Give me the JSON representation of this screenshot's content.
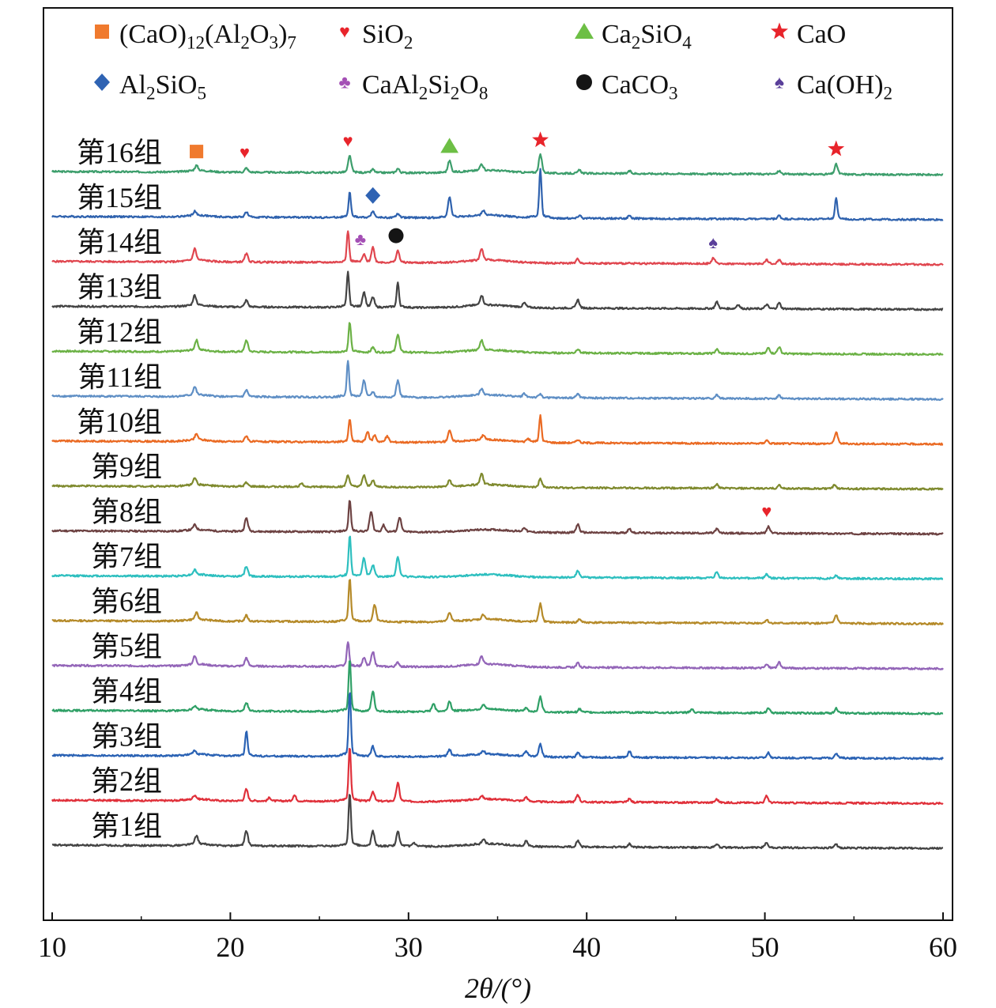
{
  "chart_data": {
    "type": "line",
    "title": "",
    "xlabel": "2θ/(°)",
    "ylabel": "",
    "xlim": [
      10,
      60
    ],
    "xticks": [
      "10",
      "20",
      "30",
      "40",
      "50",
      "60"
    ],
    "grid": false,
    "legend_placement": "top",
    "legend": [
      {
        "marker": "square",
        "color": "#f07a2e",
        "label": "(CaO)12(Al2O3)7"
      },
      {
        "marker": "heart",
        "color": "#e8242b",
        "label": "SiO2"
      },
      {
        "marker": "triangle",
        "color": "#6dbf45",
        "label": "Ca2SiO4"
      },
      {
        "marker": "star",
        "color": "#e8242b",
        "label": "CaO"
      },
      {
        "marker": "diamond",
        "color": "#2f63b3",
        "label": "Al2SiO5"
      },
      {
        "marker": "club",
        "color": "#a44fb5",
        "label": "CaAl2Si2O8"
      },
      {
        "marker": "circle",
        "color": "#151515",
        "label": "CaCO3"
      },
      {
        "marker": "spade",
        "color": "#5a3f9a",
        "label": "Ca(OH)2"
      }
    ],
    "series": [
      {
        "name": "第16组",
        "color": "#3d9e6c",
        "peaks": [
          [
            18.1,
            6
          ],
          [
            20.9,
            5
          ],
          [
            26.7,
            20
          ],
          [
            28.0,
            4
          ],
          [
            29.4,
            5
          ],
          [
            32.3,
            14
          ],
          [
            34.1,
            8
          ],
          [
            37.4,
            22
          ],
          [
            39.6,
            4
          ],
          [
            42.4,
            3
          ],
          [
            50.8,
            4
          ],
          [
            54.0,
            12
          ]
        ]
      },
      {
        "name": "第15组",
        "color": "#2f62ae",
        "peaks": [
          [
            18.0,
            5
          ],
          [
            20.9,
            6
          ],
          [
            26.7,
            30
          ],
          [
            28.0,
            8
          ],
          [
            29.4,
            5
          ],
          [
            32.3,
            24
          ],
          [
            34.2,
            6
          ],
          [
            37.4,
            58
          ],
          [
            39.6,
            4
          ],
          [
            42.4,
            3
          ],
          [
            50.8,
            4
          ],
          [
            54.0,
            26
          ]
        ]
      },
      {
        "name": "第14组",
        "color": "#e0464f",
        "peaks": [
          [
            18.0,
            14
          ],
          [
            20.9,
            10
          ],
          [
            26.6,
            38
          ],
          [
            27.5,
            9
          ],
          [
            28.0,
            18
          ],
          [
            29.4,
            14
          ],
          [
            34.1,
            14
          ],
          [
            39.5,
            5
          ],
          [
            47.1,
            7
          ],
          [
            50.1,
            5
          ],
          [
            50.8,
            5
          ]
        ]
      },
      {
        "name": "第13组",
        "color": "#444444",
        "peaks": [
          [
            18.0,
            12
          ],
          [
            20.9,
            8
          ],
          [
            26.6,
            42
          ],
          [
            27.5,
            18
          ],
          [
            28.0,
            12
          ],
          [
            29.4,
            30
          ],
          [
            34.1,
            12
          ],
          [
            36.5,
            5
          ],
          [
            39.5,
            10
          ],
          [
            47.3,
            8
          ],
          [
            48.5,
            5
          ],
          [
            50.1,
            5
          ],
          [
            50.8,
            7
          ]
        ]
      },
      {
        "name": "第12组",
        "color": "#6bb145",
        "peaks": [
          [
            18.1,
            12
          ],
          [
            20.9,
            14
          ],
          [
            26.7,
            36
          ],
          [
            28.0,
            6
          ],
          [
            29.4,
            22
          ],
          [
            34.1,
            12
          ],
          [
            39.5,
            5
          ],
          [
            47.3,
            5
          ],
          [
            50.2,
            7
          ],
          [
            50.8,
            8
          ]
        ]
      },
      {
        "name": "第11组",
        "color": "#5f8fc5",
        "peaks": [
          [
            18.0,
            10
          ],
          [
            20.9,
            8
          ],
          [
            26.6,
            44
          ],
          [
            27.5,
            20
          ],
          [
            28.0,
            6
          ],
          [
            29.4,
            20
          ],
          [
            34.1,
            8
          ],
          [
            36.5,
            4
          ],
          [
            37.4,
            4
          ],
          [
            39.5,
            5
          ],
          [
            47.3,
            4
          ],
          [
            50.8,
            4
          ]
        ]
      },
      {
        "name": "第10组",
        "color": "#ea6a23",
        "peaks": [
          [
            18.1,
            7
          ],
          [
            20.9,
            7
          ],
          [
            26.7,
            28
          ],
          [
            27.7,
            12
          ],
          [
            28.1,
            8
          ],
          [
            28.8,
            7
          ],
          [
            32.3,
            14
          ],
          [
            34.2,
            6
          ],
          [
            36.7,
            4
          ],
          [
            37.4,
            32
          ],
          [
            39.5,
            4
          ],
          [
            50.1,
            4
          ],
          [
            54.0,
            14
          ]
        ]
      },
      {
        "name": "第9组",
        "color": "#7f8a2e",
        "peaks": [
          [
            18.0,
            9
          ],
          [
            20.9,
            5
          ],
          [
            24.0,
            5
          ],
          [
            26.6,
            14
          ],
          [
            27.5,
            14
          ],
          [
            28.0,
            8
          ],
          [
            32.3,
            8
          ],
          [
            34.1,
            13
          ],
          [
            37.4,
            10
          ],
          [
            47.3,
            5
          ],
          [
            50.8,
            4
          ],
          [
            53.9,
            4
          ]
        ]
      },
      {
        "name": "第8组",
        "color": "#6d4242",
        "peaks": [
          [
            18.0,
            6
          ],
          [
            20.9,
            16
          ],
          [
            26.7,
            38
          ],
          [
            27.9,
            24
          ],
          [
            28.6,
            8
          ],
          [
            29.5,
            18
          ],
          [
            36.5,
            5
          ],
          [
            39.5,
            10
          ],
          [
            42.4,
            5
          ],
          [
            47.3,
            5
          ],
          [
            50.2,
            8
          ]
        ]
      },
      {
        "name": "第7组",
        "color": "#2dbfbf",
        "peaks": [
          [
            18.0,
            6
          ],
          [
            20.9,
            12
          ],
          [
            26.7,
            50
          ],
          [
            27.5,
            22
          ],
          [
            28.0,
            14
          ],
          [
            29.4,
            24
          ],
          [
            39.5,
            8
          ],
          [
            47.3,
            7
          ],
          [
            50.1,
            5
          ],
          [
            54.0,
            4
          ]
        ]
      },
      {
        "name": "第6组",
        "color": "#b58a29",
        "peaks": [
          [
            18.1,
            8
          ],
          [
            20.9,
            7
          ],
          [
            26.7,
            52
          ],
          [
            28.1,
            20
          ],
          [
            32.3,
            11
          ],
          [
            34.2,
            6
          ],
          [
            37.4,
            22
          ],
          [
            39.6,
            4
          ],
          [
            50.1,
            4
          ],
          [
            54.0,
            10
          ]
        ]
      },
      {
        "name": "第5组",
        "color": "#9365b8",
        "peaks": [
          [
            18.0,
            10
          ],
          [
            20.9,
            10
          ],
          [
            26.6,
            30
          ],
          [
            27.5,
            10
          ],
          [
            28.0,
            18
          ],
          [
            29.4,
            5
          ],
          [
            34.1,
            10
          ],
          [
            39.5,
            5
          ],
          [
            50.1,
            4
          ],
          [
            50.8,
            7
          ]
        ]
      },
      {
        "name": "第4组",
        "color": "#2fa066",
        "peaks": [
          [
            18.0,
            4
          ],
          [
            20.9,
            10
          ],
          [
            26.7,
            62
          ],
          [
            28.0,
            24
          ],
          [
            31.4,
            10
          ],
          [
            32.3,
            12
          ],
          [
            34.2,
            6
          ],
          [
            36.6,
            4
          ],
          [
            37.4,
            18
          ],
          [
            39.6,
            4
          ],
          [
            45.9,
            4
          ],
          [
            50.2,
            6
          ],
          [
            54.0,
            6
          ]
        ]
      },
      {
        "name": "第3组",
        "color": "#2a62b4",
        "peaks": [
          [
            18.0,
            5
          ],
          [
            20.9,
            30
          ],
          [
            26.7,
            78
          ],
          [
            28.0,
            12
          ],
          [
            32.3,
            8
          ],
          [
            34.2,
            4
          ],
          [
            36.6,
            6
          ],
          [
            37.4,
            15
          ],
          [
            39.5,
            5
          ],
          [
            42.4,
            7
          ],
          [
            50.2,
            6
          ],
          [
            54.0,
            6
          ]
        ]
      },
      {
        "name": "第2组",
        "color": "#e0303a",
        "peaks": [
          [
            18.0,
            5
          ],
          [
            20.9,
            14
          ],
          [
            22.2,
            4
          ],
          [
            23.6,
            7
          ],
          [
            26.7,
            66
          ],
          [
            28.0,
            12
          ],
          [
            29.4,
            22
          ],
          [
            34.1,
            4
          ],
          [
            36.6,
            5
          ],
          [
            39.5,
            9
          ],
          [
            42.4,
            4
          ],
          [
            47.3,
            4
          ],
          [
            50.1,
            8
          ]
        ]
      },
      {
        "name": "第1组",
        "color": "#444444",
        "peaks": [
          [
            18.1,
            10
          ],
          [
            20.9,
            18
          ],
          [
            26.7,
            64
          ],
          [
            28.0,
            18
          ],
          [
            29.4,
            18
          ],
          [
            30.3,
            4
          ],
          [
            34.2,
            6
          ],
          [
            36.6,
            6
          ],
          [
            39.5,
            8
          ],
          [
            42.4,
            4
          ],
          [
            47.3,
            4
          ],
          [
            50.1,
            6
          ],
          [
            54.0,
            4
          ]
        ]
      }
    ],
    "annotations": [
      {
        "marker": "square",
        "color": "#f07a2e",
        "x": 18.1,
        "series": "第16组"
      },
      {
        "marker": "heart",
        "color": "#e8242b",
        "x": 20.8,
        "series": "第16组"
      },
      {
        "marker": "heart",
        "color": "#e8242b",
        "x": 26.6,
        "series": "第16组"
      },
      {
        "marker": "triangle",
        "color": "#6dbf45",
        "x": 32.3,
        "series": "第16组"
      },
      {
        "marker": "star",
        "color": "#e8242b",
        "x": 37.4,
        "series": "第16组"
      },
      {
        "marker": "star",
        "color": "#e8242b",
        "x": 54.0,
        "series": "第16组"
      },
      {
        "marker": "diamond",
        "color": "#2f63b3",
        "x": 28.0,
        "series": "第15组"
      },
      {
        "marker": "club",
        "color": "#a44fb5",
        "x": 27.3,
        "series": "第14组"
      },
      {
        "marker": "circle",
        "color": "#151515",
        "x": 29.3,
        "series": "第14组"
      },
      {
        "marker": "spade",
        "color": "#5a3f9a",
        "x": 47.1,
        "series": "第14组"
      },
      {
        "marker": "heart",
        "color": "#e8242b",
        "x": 50.1,
        "series": "第8组"
      }
    ]
  }
}
